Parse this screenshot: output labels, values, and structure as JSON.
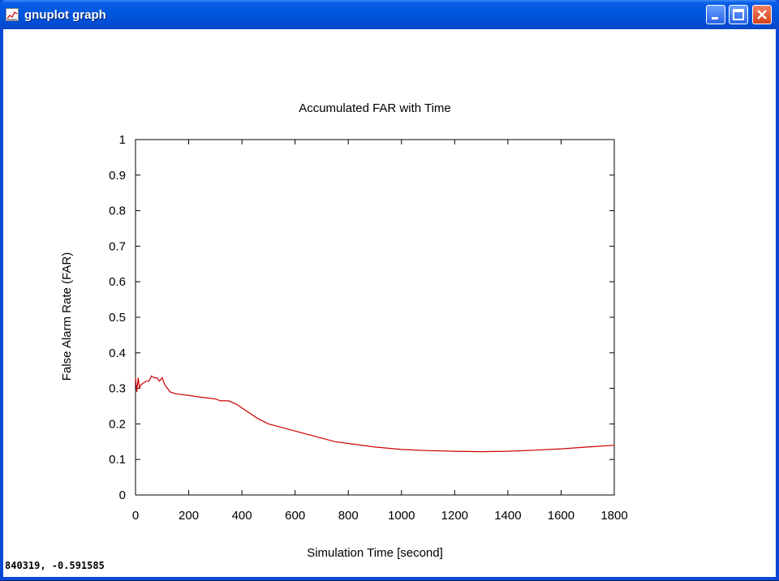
{
  "window": {
    "title": "gnuplot graph",
    "minimize_label": "",
    "maximize_label": "",
    "close_label": ""
  },
  "status": {
    "coords": "840319, -0.591585"
  },
  "chart_data": {
    "type": "line",
    "title": "Accumulated FAR with Time",
    "xlabel": "Simulation Time [second]",
    "ylabel": "False Alarm Rate (FAR)",
    "xlim": [
      0,
      1800
    ],
    "ylim": [
      0,
      1
    ],
    "xticks": [
      0,
      200,
      400,
      600,
      800,
      1000,
      1200,
      1400,
      1600,
      1800
    ],
    "yticks": [
      0,
      0.1,
      0.2,
      0.3,
      0.4,
      0.5,
      0.6,
      0.7,
      0.8,
      0.9,
      1
    ],
    "ytick_labels": [
      "0",
      "0.1",
      "0.2",
      "0.3",
      "0.4",
      "0.5",
      "0.6",
      "0.7",
      "0.8",
      "0.9",
      "1"
    ],
    "grid": false,
    "series": [
      {
        "color": "#cc0000",
        "x": [
          0,
          5,
          10,
          15,
          20,
          30,
          40,
          50,
          60,
          70,
          80,
          90,
          100,
          110,
          120,
          130,
          150,
          200,
          250,
          300,
          320,
          350,
          380,
          400,
          430,
          460,
          500,
          600,
          700,
          750,
          800,
          900,
          1000,
          1100,
          1200,
          1300,
          1400,
          1500,
          1600,
          1700,
          1800
        ],
        "y": [
          0.33,
          0.29,
          0.33,
          0.3,
          0.31,
          0.315,
          0.32,
          0.32,
          0.335,
          0.33,
          0.33,
          0.32,
          0.33,
          0.31,
          0.3,
          0.29,
          0.285,
          0.28,
          0.275,
          0.27,
          0.265,
          0.265,
          0.255,
          0.245,
          0.23,
          0.215,
          0.2,
          0.18,
          0.16,
          0.15,
          0.145,
          0.135,
          0.128,
          0.125,
          0.123,
          0.122,
          0.123,
          0.126,
          0.13,
          0.135,
          0.14
        ]
      }
    ]
  }
}
